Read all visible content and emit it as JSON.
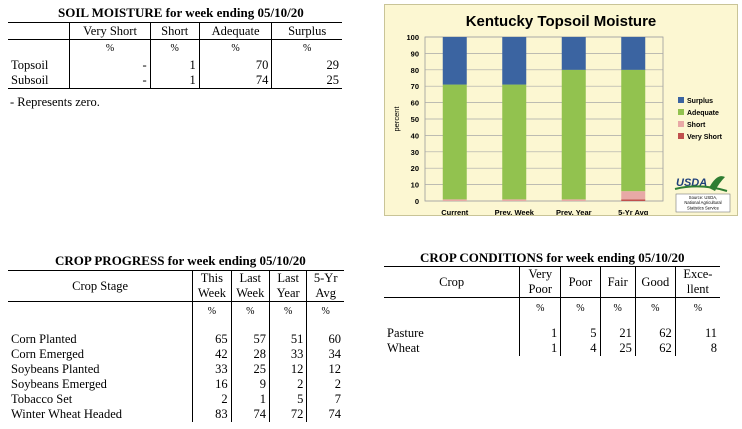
{
  "soil_moisture": {
    "title": "SOIL MOISTURE for week ending 05/10/20",
    "columns": [
      "Very Short",
      "Short",
      "Adequate",
      "Surplus"
    ],
    "units": [
      "%",
      "%",
      "%",
      "%"
    ],
    "rows": [
      {
        "label": "Topsoil",
        "values": [
          "-",
          "1",
          "70",
          "29"
        ]
      },
      {
        "label": "Subsoil",
        "values": [
          "-",
          "1",
          "74",
          "25"
        ]
      }
    ],
    "note": "- Represents zero."
  },
  "chart_data": {
    "type": "bar",
    "title": "Kentucky Topsoil Moisture",
    "ylabel": "percent",
    "xlabel": "",
    "ylim": [
      0,
      100
    ],
    "yticks": [
      "0",
      "10",
      "20",
      "30",
      "40",
      "50",
      "60",
      "70",
      "80",
      "90",
      "100"
    ],
    "categories": [
      "Current",
      "Prev. Week",
      "Prev. Year",
      "5-Yr Avg"
    ],
    "series": [
      {
        "name": "Very Short",
        "values": [
          0,
          0,
          0,
          1
        ],
        "color": "#c0504d"
      },
      {
        "name": "Short",
        "values": [
          1,
          1,
          1,
          5
        ],
        "color": "#e8a9a6"
      },
      {
        "name": "Adequate",
        "values": [
          70,
          70,
          79,
          74
        ],
        "color": "#92c24f"
      },
      {
        "name": "Surplus",
        "values": [
          29,
          29,
          20,
          20
        ],
        "color": "#3b64a1"
      }
    ],
    "legend_order": [
      "Surplus",
      "Adequate",
      "Short",
      "Very Short"
    ],
    "legend_position": "right",
    "grid": true,
    "logo_text": "USDA",
    "source_lines": [
      "Source: USDA,",
      "National Agricultural",
      "Statistics Service"
    ]
  },
  "crop_progress": {
    "title": "CROP PROGRESS for week ending 05/10/20",
    "stage_header": "Crop Stage",
    "columns": [
      {
        "line1": "This",
        "line2": "Week"
      },
      {
        "line1": "Last",
        "line2": "Week"
      },
      {
        "line1": "Last",
        "line2": "Year"
      },
      {
        "line1": "5-Yr",
        "line2": "Avg"
      }
    ],
    "units": [
      "%",
      "%",
      "%",
      "%"
    ],
    "rows": [
      {
        "label": "Corn Planted",
        "values": [
          "65",
          "57",
          "51",
          "60"
        ]
      },
      {
        "label": "Corn Emerged",
        "values": [
          "42",
          "28",
          "33",
          "34"
        ]
      },
      {
        "label": "Soybeans Planted",
        "values": [
          "33",
          "25",
          "12",
          "12"
        ]
      },
      {
        "label": "Soybeans Emerged",
        "values": [
          "16",
          "9",
          "2",
          "2"
        ]
      },
      {
        "label": "Tobacco Set",
        "values": [
          "2",
          "1",
          "5",
          "7"
        ]
      },
      {
        "label": "Winter Wheat Headed",
        "values": [
          "83",
          "74",
          "72",
          "74"
        ]
      }
    ]
  },
  "crop_conditions": {
    "title": "CROP CONDITIONS for week ending 05/10/20",
    "crop_header": "Crop",
    "columns": [
      {
        "line1": "Very",
        "line2": "Poor"
      },
      {
        "line1": "Poor",
        "line2": ""
      },
      {
        "line1": "Fair",
        "line2": ""
      },
      {
        "line1": "Good",
        "line2": ""
      },
      {
        "line1": "Exce-",
        "line2": "llent"
      }
    ],
    "units": [
      "%",
      "%",
      "%",
      "%",
      "%"
    ],
    "rows": [
      {
        "label": "Pasture",
        "values": [
          "1",
          "5",
          "21",
          "62",
          "11"
        ]
      },
      {
        "label": "Wheat",
        "values": [
          "1",
          "4",
          "25",
          "62",
          "8"
        ]
      }
    ]
  }
}
